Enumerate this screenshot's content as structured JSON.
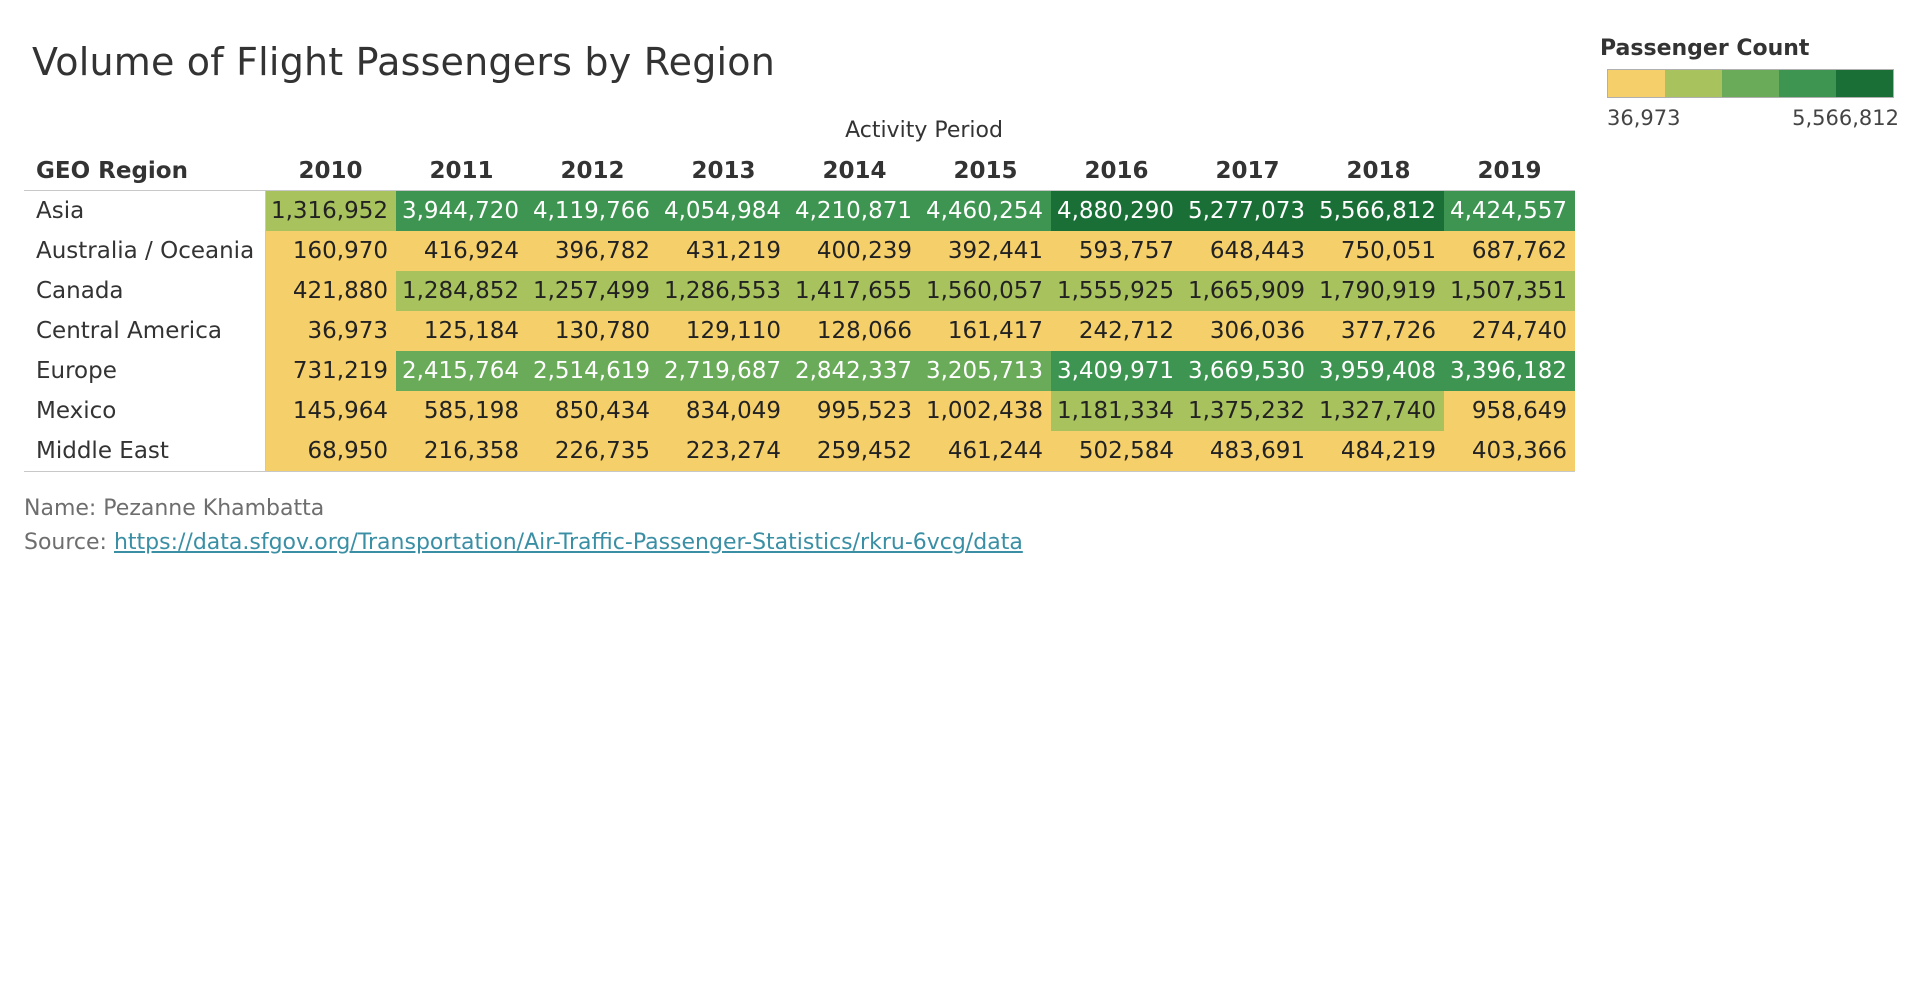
{
  "chart_data": {
    "type": "heatmap",
    "title": "Volume of Flight Passengers by Region",
    "column_group_label": "Activity Period",
    "row_header": "GEO Region",
    "x": [
      "2010",
      "2011",
      "2012",
      "2013",
      "2014",
      "2015",
      "2016",
      "2017",
      "2018",
      "2019"
    ],
    "y": [
      "Asia",
      "Australia / Oceania",
      "Canada",
      "Central America",
      "Europe",
      "Mexico",
      "Middle East"
    ],
    "values": [
      [
        1316952,
        3944720,
        4119766,
        4054984,
        4210871,
        4460254,
        4880290,
        5277073,
        5566812,
        4424557
      ],
      [
        160970,
        416924,
        396782,
        431219,
        400239,
        392441,
        593757,
        648443,
        750051,
        687762
      ],
      [
        421880,
        1284852,
        1257499,
        1286553,
        1417655,
        1560057,
        1555925,
        1665909,
        1790919,
        1507351
      ],
      [
        36973,
        125184,
        130780,
        129110,
        128066,
        161417,
        242712,
        306036,
        377726,
        274740
      ],
      [
        731219,
        2415764,
        2514619,
        2719687,
        2842337,
        3205713,
        3409971,
        3669530,
        3959408,
        3396182
      ],
      [
        145964,
        585198,
        850434,
        834049,
        995523,
        1002438,
        1181334,
        1375232,
        1327740,
        958649
      ],
      [
        68950,
        216358,
        226735,
        223274,
        259452,
        461244,
        502584,
        483691,
        484219,
        403366
      ]
    ],
    "legend": {
      "title": "Passenger Count",
      "min_label": "36,973",
      "max_label": "5,566,812",
      "min": 36973,
      "max": 5566812,
      "colors": [
        "#f5cf6a",
        "#a8c25d",
        "#6aab5a",
        "#3e9551",
        "#1a6f36"
      ]
    }
  },
  "footer": {
    "name_line": "Name: Pezanne Khambatta",
    "source_label": "Source: ",
    "source_url": "https://data.sfgov.org/Transportation/Air-Traffic-Passenger-Statistics/rkru-6vcg/data"
  }
}
